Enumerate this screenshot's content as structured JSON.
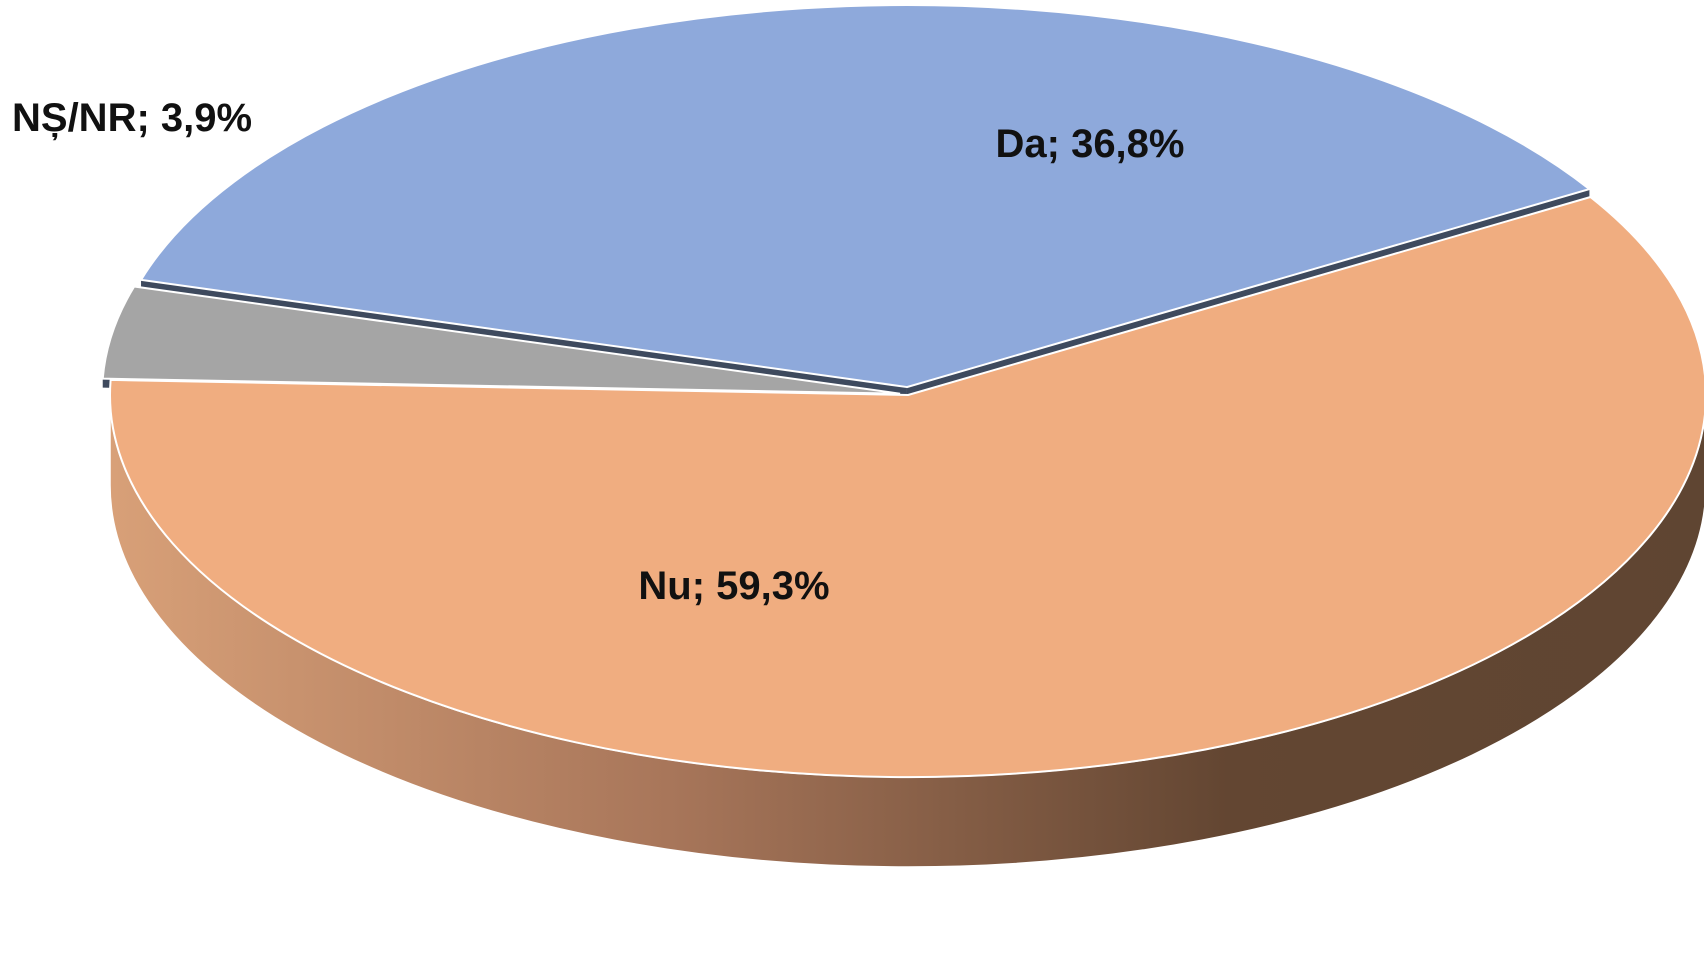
{
  "chart_data": {
    "type": "pie",
    "style": "3d-exploded",
    "categories": [
      "Da",
      "Nu",
      "NȘ/NR"
    ],
    "values": [
      36.8,
      59.3,
      3.9
    ],
    "unit": "%",
    "data_labels": [
      "Da; 36,8%",
      "Nu; 59,3%",
      "NȘ/NR; 3,9%"
    ],
    "colors": {
      "Da": "#8EA9DB",
      "Nu": "#F0AD80",
      "NȘ/NR": "#A5A5A5"
    },
    "legend": "none"
  }
}
